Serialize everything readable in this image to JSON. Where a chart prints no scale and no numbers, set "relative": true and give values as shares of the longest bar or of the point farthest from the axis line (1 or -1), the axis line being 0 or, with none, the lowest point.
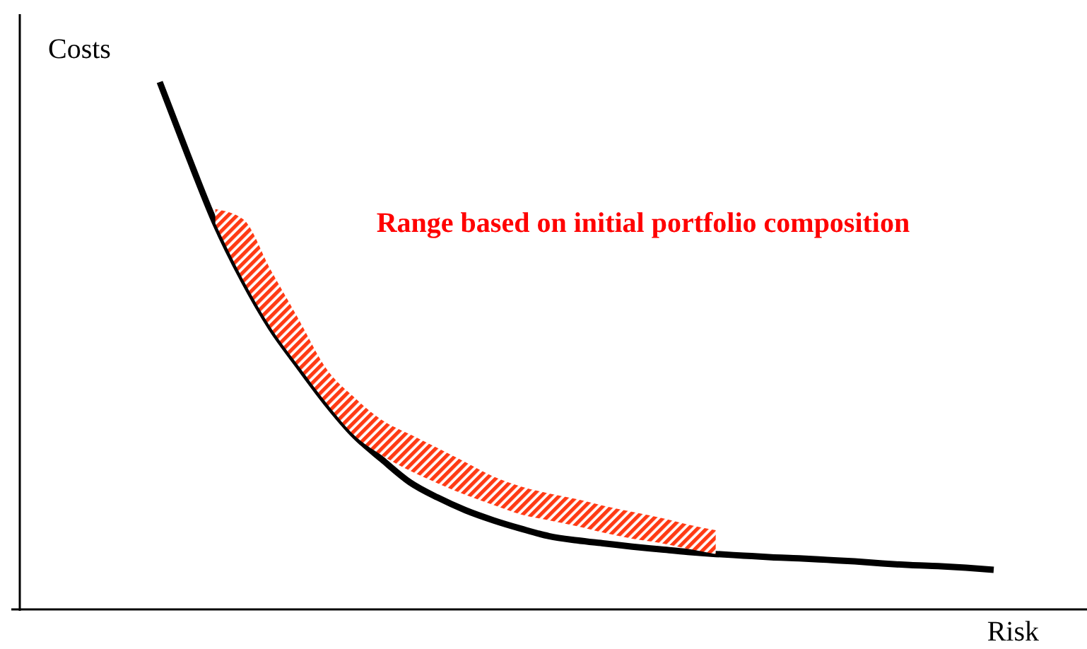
{
  "chart_data": {
    "type": "line",
    "relative": true,
    "xlabel": "Risk",
    "ylabel": "Costs",
    "annotations": [
      "Range based on initial portfolio composition"
    ],
    "categories": [
      null,
      null,
      null,
      null,
      null,
      null,
      null,
      null,
      null,
      null,
      null,
      null,
      null,
      null,
      null,
      null,
      null,
      null,
      null,
      null,
      null,
      null,
      null,
      null,
      null,
      null,
      null,
      null,
      null,
      null,
      null
    ],
    "series": [
      {
        "color": "#000000",
        "values": [
          1,
          0.863,
          0.732,
          0.625,
          0.534,
          0.461,
          0.391,
          0.33,
          0.284,
          0.241,
          0.212,
          0.188,
          0.169,
          0.153,
          0.139,
          0.131,
          0.125,
          0.119,
          0.114,
          0.109,
          0.105,
          0.102,
          0.099,
          0.097,
          0.094,
          0.091,
          0.087,
          0.084,
          0.082,
          0.079,
          0.075
        ],
        "lower": [
          null,
          null,
          0.732,
          0.625,
          0.534,
          0.461,
          0.391,
          0.33,
          0.292,
          0.263,
          0.239,
          0.217,
          0.198,
          0.18,
          0.169,
          0.158,
          0.145,
          0.134,
          0.126,
          0.115,
          0.105,
          null,
          null,
          null,
          null,
          null,
          null,
          null,
          null,
          null,
          null
        ],
        "upper": [
          null,
          null,
          0.759,
          0.74,
          0.643,
          0.55,
          0.456,
          0.402,
          0.359,
          0.332,
          0.306,
          0.279,
          0.252,
          0.233,
          0.22,
          0.209,
          0.196,
          0.185,
          0.174,
          0.161,
          0.15,
          null,
          null,
          null,
          null,
          null,
          null,
          null,
          null,
          null,
          null
        ]
      }
    ]
  }
}
